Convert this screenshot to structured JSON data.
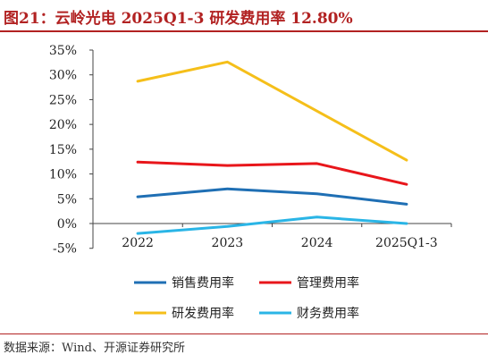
{
  "figure_title": "图21：云岭光电 2025Q1-3 研发费用率 12.80%",
  "source": "数据来源：Wind、开源证券研究所",
  "chart_data": {
    "type": "line",
    "title": "",
    "xlabel": "",
    "ylabel": "",
    "categories": [
      "2022",
      "2023",
      "2024",
      "2025Q1-3"
    ],
    "ylim": [
      -5,
      35
    ],
    "yticks": [
      "-5%",
      "0%",
      "5%",
      "10%",
      "15%",
      "20%",
      "25%",
      "30%",
      "35%"
    ],
    "grid": false,
    "legend_position": "bottom",
    "series": [
      {
        "name": "销售费用率",
        "color": "#1f6fb4",
        "values": [
          5.4,
          7.0,
          6.0,
          3.9
        ]
      },
      {
        "name": "管理费用率",
        "color": "#e8161b",
        "values": [
          12.4,
          11.7,
          12.1,
          7.9
        ]
      },
      {
        "name": "研发费用率",
        "color": "#f5bf1a",
        "values": [
          28.7,
          32.6,
          22.7,
          12.8
        ]
      },
      {
        "name": "财务费用率",
        "color": "#2ab5e6",
        "values": [
          -2.0,
          -0.6,
          1.3,
          0.0
        ]
      }
    ]
  }
}
